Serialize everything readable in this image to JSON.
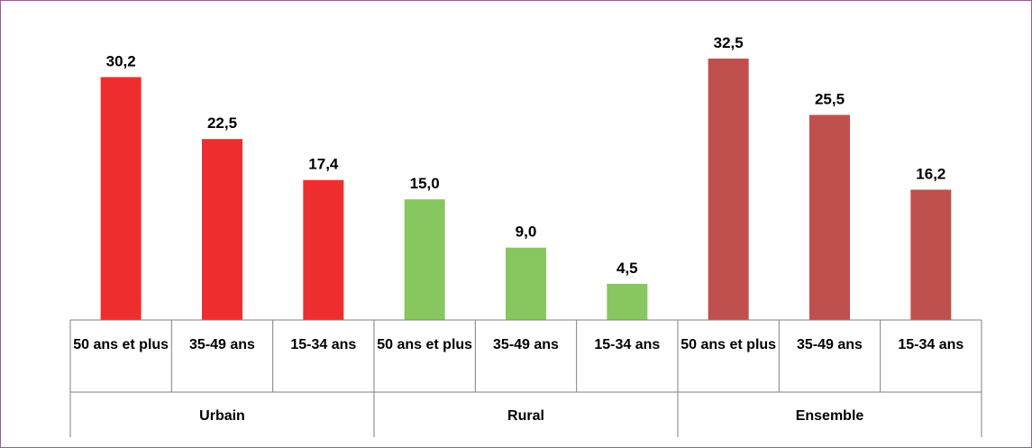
{
  "chart_data": {
    "type": "bar",
    "categories": [
      "50 ans et plus",
      "35-49 ans",
      "15-34 ans",
      "50 ans et plus",
      "35-49 ans",
      "15-34 ans",
      "50 ans et plus",
      "35-49 ans",
      "15-34 ans"
    ],
    "groups": [
      "Urbain",
      "Rural",
      "Ensemble"
    ],
    "values": [
      30.2,
      22.5,
      17.4,
      15.0,
      9.0,
      4.5,
      32.5,
      25.5,
      16.2
    ],
    "value_labels": [
      "30,2",
      "22,5",
      "17,4",
      "15,0",
      "9,0",
      "4,5",
      "32,5",
      "25,5",
      "16,2"
    ],
    "colors": [
      "#ee2e2e",
      "#ee2e2e",
      "#ee2e2e",
      "#88c660",
      "#88c660",
      "#88c660",
      "#c0504d",
      "#c0504d",
      "#c0504d"
    ]
  }
}
